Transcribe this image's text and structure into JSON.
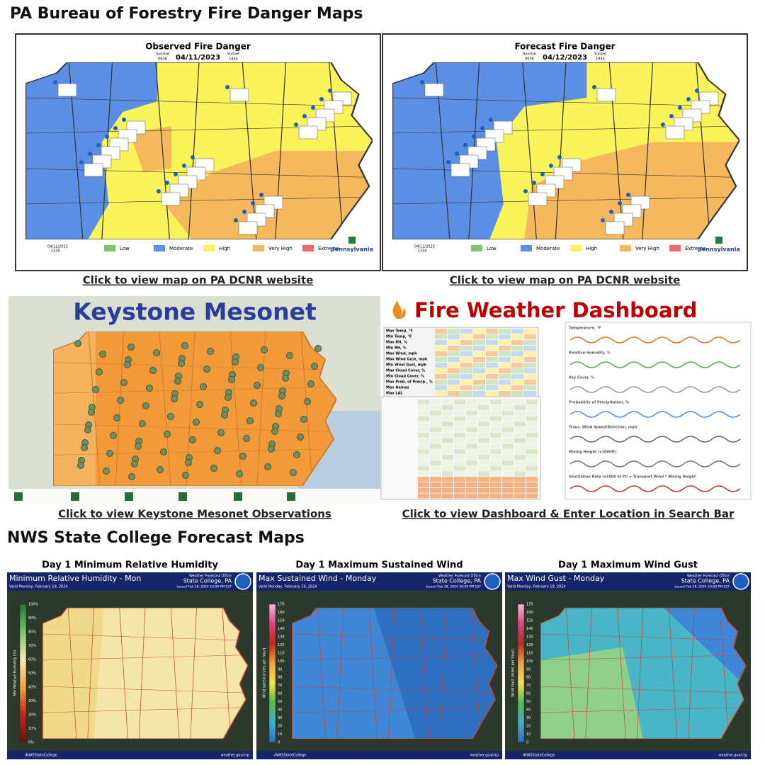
{
  "header": {
    "title": "PA Bureau of Forestry Fire Danger Maps"
  },
  "fire_danger": {
    "maps": [
      {
        "title": "Observed Fire Danger",
        "date": "04/11/2023",
        "sunrise_label": "Sunrise",
        "sunrise": "0638",
        "sunset_label": "Sunset",
        "sunset": "1944",
        "stamp_date": "04/11/2023",
        "stamp_time": "1335",
        "link": "Click to view map on PA DCNR website"
      },
      {
        "title": "Forecast Fire Danger",
        "date": "04/12/2023",
        "sunrise_label": "Sunrise",
        "sunrise": "0636",
        "sunset_label": "Sunset",
        "sunset": "1945",
        "stamp_date": "04/11/2023",
        "stamp_time": "1334",
        "link": "Click to view map on PA DCNR website"
      }
    ],
    "legend": [
      {
        "label": "Low",
        "color": "#7fc36a"
      },
      {
        "label": "Moderate",
        "color": "#5b8fe6"
      },
      {
        "label": "High",
        "color": "#fbf35a"
      },
      {
        "label": "Very High",
        "color": "#f5b85c"
      },
      {
        "label": "Extreme",
        "color": "#f06a6a"
      }
    ],
    "logo": "pennsylvania"
  },
  "mesonet": {
    "title": "Keystone Mesonet",
    "link": "Click to view Keystone Mesonet Observations"
  },
  "dashboard": {
    "title": "Fire Weather Dashboard",
    "link": "Click to view Dashboard & Enter Location in Search Bar",
    "rows": [
      "Max Temp, °F",
      "Min Temp, °F",
      "Max RH, %",
      "Min RH, %",
      "Max Wind, mph",
      "Max Wind Gust, mph",
      "Min Wind Gust, mph",
      "Max Cloud Cover, %",
      "Min Cloud Cover, %",
      "Max Prob. of Precip., %",
      "Max Haines",
      "Max LAL"
    ],
    "charts": [
      "Temperature, °F",
      "Relative Humidity, %",
      "Sky Cover, %",
      "Probability of Precipitation, %",
      "Trans. Wind Speed/Direction, mph",
      "Mixing Height (x1000ft)",
      "Ventilation Rate (x1000 kt-ft) = Transport Wind * Mixing Height"
    ]
  },
  "nws": {
    "title": "NWS State College Forecast Maps",
    "maps": [
      {
        "caption": "Day 1 Minimum Relative Humidity",
        "title": "Minimum Relative Humidity - Mon",
        "valid": "Valid Monday, February 19, 2024",
        "office": "Weather Forecast Office",
        "office_city": "State College, PA",
        "issued": "Issued Feb 18, 2024 10:09 PM EST",
        "social": "/NWSStateCollege",
        "site": "weather.gov/ctp",
        "scale_label": "Min Relative Humidity (%)",
        "scale": [
          "100%",
          "90%",
          "80%",
          "70%",
          "60%",
          "50%",
          "40%",
          "30%",
          "20%",
          "10%",
          "0%"
        ]
      },
      {
        "caption": "Day 1 Maximum Sustained Wind",
        "title": "Max Sustained Wind - Monday",
        "valid": "Valid Monday, February 19, 2024",
        "office": "Weather Forecast Office",
        "office_city": "State College, PA",
        "issued": "Issued Feb 18, 2024 10:08 PM EST",
        "social": "/NWSStateCollege",
        "site": "weather.gov/ctp",
        "scale_label": "Wind speed (miles per hour)",
        "scale": [
          "170",
          "160",
          "150",
          "140",
          "130",
          "120",
          "110",
          "100",
          "90",
          "80",
          "70",
          "60",
          "50",
          "40",
          "30",
          "20",
          "10",
          "0"
        ]
      },
      {
        "caption": "Day 1 Maximum Wind Gust",
        "title": "Max Wind Gust - Monday",
        "valid": "Valid Monday, February 19, 2024",
        "office": "Weather Forecast Office",
        "office_city": "State College, PA",
        "issued": "Issued Feb 18, 2024 10:08 PM EST",
        "social": "/NWSStateCollege",
        "site": "weather.gov/ctp",
        "scale_label": "Wind Gust (miles per hour)",
        "scale": [
          "170",
          "160",
          "150",
          "140",
          "130",
          "120",
          "110",
          "100",
          "90",
          "80",
          "70",
          "60",
          "50",
          "40",
          "30",
          "20",
          "10",
          "0"
        ]
      }
    ]
  }
}
